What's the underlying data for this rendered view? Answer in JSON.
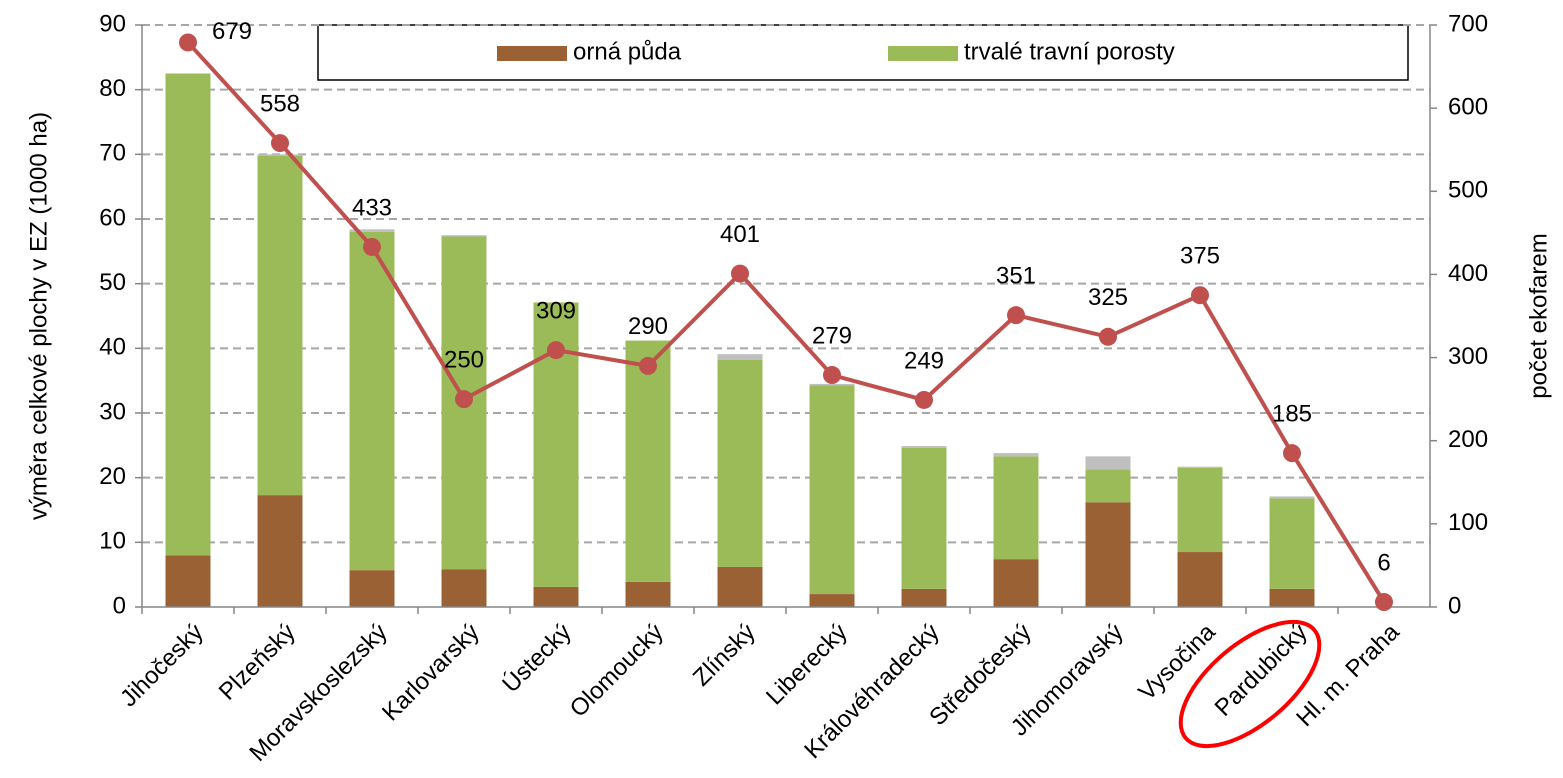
{
  "chart_data": {
    "type": "bar",
    "y_label": "výměra celkové plochy v EZ (1000 ha)",
    "y2_label": "počet ekofarem",
    "categories": [
      "Jihočeský",
      "Plzeňský",
      "Moravskoslezský",
      "Karlovarský",
      "Ústecký",
      "Olomoucký",
      "Zlínský",
      "Liberecký",
      "Královéhradecký",
      "Středočeský",
      "Jihomoravský",
      "Vysočina",
      "Pardubický",
      "Hl. m. Praha"
    ],
    "series": [
      {
        "name": "orná půda",
        "color": "#9a6234",
        "values": [
          8,
          17.3,
          5.7,
          5.8,
          3.1,
          3.9,
          6.2,
          2,
          2.8,
          7.4,
          16.2,
          8.5,
          2.8,
          0
        ]
      },
      {
        "name": "trvalé travní porosty",
        "color": "#9bbb59",
        "values": [
          74.5,
          52.5,
          52.3,
          51.5,
          44,
          37.3,
          32,
          32.3,
          21.8,
          15.9,
          5.1,
          13,
          14,
          0
        ]
      },
      {
        "color": "#bfbfbf",
        "values": [
          0,
          0.2,
          0.4,
          0.2,
          0,
          0,
          0.9,
          0.2,
          0.3,
          0.5,
          2,
          0.2,
          0.3,
          0
        ]
      },
      {
        "type": "line",
        "axis": "y2",
        "color": "#c0504d",
        "values": [
          679,
          558,
          433,
          250,
          309,
          290,
          401,
          279,
          249,
          351,
          325,
          375,
          185,
          6
        ]
      }
    ],
    "ylim": [
      0,
      90
    ],
    "yticks": [
      0,
      10,
      20,
      30,
      40,
      50,
      60,
      70,
      80,
      90
    ],
    "y2lim": [
      0,
      700
    ],
    "y2ticks": [
      0,
      100,
      200,
      300,
      400,
      500,
      600,
      700
    ],
    "grid": true
  }
}
